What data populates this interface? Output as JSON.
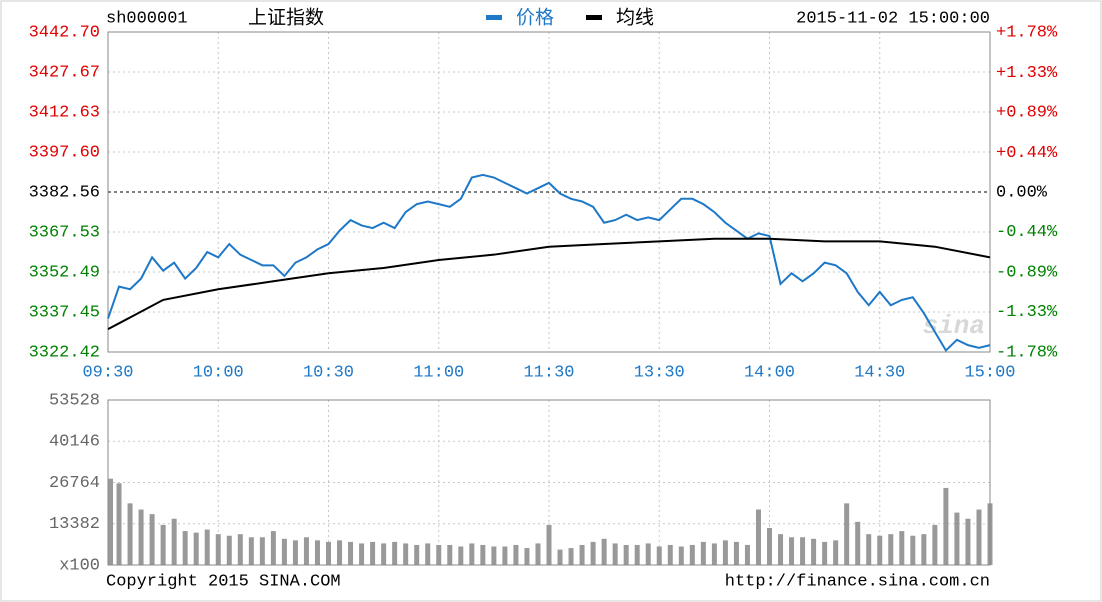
{
  "chart_data": [
    {
      "type": "line",
      "symbol": "sh000001",
      "title": "上证指数",
      "timestamp": "2015-11-02 15:00:00",
      "watermark": "sina",
      "up_color": "#e00000",
      "down_color": "#008000",
      "x": [
        0,
        3,
        6,
        9,
        12,
        15,
        18,
        21,
        24,
        27,
        30,
        33,
        36,
        39,
        42,
        45,
        48,
        51,
        54,
        57,
        60,
        63,
        66,
        69,
        72,
        75,
        78,
        81,
        84,
        87,
        90,
        93,
        96,
        99,
        102,
        105,
        108,
        111,
        114,
        117,
        120,
        123,
        126,
        129,
        132,
        135,
        138,
        141,
        144,
        147,
        150,
        153,
        156,
        159,
        162,
        165,
        168,
        171,
        174,
        177,
        180,
        183,
        186,
        189,
        192,
        195,
        198,
        201,
        204,
        207,
        210,
        213,
        216,
        219,
        222,
        225,
        228,
        231,
        234,
        237,
        240
      ],
      "xlim": [
        0,
        240
      ],
      "xticks": [
        {
          "value": 0,
          "label": "09:30"
        },
        {
          "value": 30,
          "label": "10:00"
        },
        {
          "value": 60,
          "label": "10:30"
        },
        {
          "value": 90,
          "label": "11:00"
        },
        {
          "value": 120,
          "label": "11:30"
        },
        {
          "value": 150,
          "label": "13:30"
        },
        {
          "value": 180,
          "label": "14:00"
        },
        {
          "value": 210,
          "label": "14:30"
        },
        {
          "value": 240,
          "label": "15:00"
        }
      ],
      "ylim": [
        3322.42,
        3442.7
      ],
      "yticks": [
        {
          "value": 3442.7,
          "label": "3442.70"
        },
        3427.67,
        3412.63,
        {
          "value": 3397.6,
          "label": "3397.60"
        },
        3382.56,
        3367.53,
        3352.49,
        3337.45,
        3322.42
      ],
      "y2lim": [
        -1.78,
        1.78
      ],
      "y2ticks": [
        {
          "value": 1.78,
          "label": "+1.78%"
        },
        {
          "value": 1.33,
          "label": "+1.33%"
        },
        {
          "value": 0.89,
          "label": "+0.89%"
        },
        {
          "value": 0.44,
          "label": "+0.44%"
        },
        {
          "value": 0,
          "label": "0.00%"
        },
        {
          "value": -0.44,
          "label": "-0.44%"
        },
        {
          "value": -0.89,
          "label": "-0.89%"
        },
        {
          "value": -1.33,
          "label": "-1.33%"
        },
        {
          "value": -1.78,
          "label": "-1.78%"
        }
      ],
      "grid": true,
      "series": [
        {
          "name": "价格",
          "color": "#1e78c8",
          "values": [
            3335,
            3347,
            3346,
            3350,
            3358,
            3353,
            3356,
            3350,
            3354,
            3360,
            3358,
            3363,
            3359,
            3357,
            3355,
            3355,
            3351,
            3356,
            3358,
            3361,
            3363,
            3368,
            3372,
            3370,
            3369,
            3371,
            3369,
            3375,
            3378,
            3379,
            3378,
            3377,
            3380,
            3388,
            3389,
            3388,
            3386,
            3384,
            3382,
            3384,
            3386,
            3382,
            3380,
            3379,
            3377,
            3371,
            3372,
            3374,
            3372,
            3373,
            3372,
            3376,
            3380,
            3380,
            3378,
            3375,
            3371,
            3368,
            3365,
            3367,
            3366,
            3348,
            3352,
            3349,
            3352,
            3356,
            3355,
            3352,
            3345,
            3340,
            3345,
            3340,
            3342,
            3343,
            3337,
            3330,
            3323,
            3327,
            3325,
            3324,
            3325
          ]
        },
        {
          "name": "均线",
          "color": "#000000",
          "x": [
            0,
            15,
            30,
            45,
            60,
            75,
            90,
            105,
            120,
            135,
            150,
            165,
            180,
            195,
            210,
            225,
            240
          ],
          "values": [
            3331,
            3342,
            3346,
            3349,
            3352,
            3354,
            3357,
            3359,
            3362,
            3363,
            3364,
            3365,
            3365,
            3364,
            3364,
            3362,
            3358
          ]
        }
      ]
    },
    {
      "type": "bar",
      "copyright": "Copyright 2015 SINA.COM",
      "source": "http://finance.sina.com.cn",
      "color": "#999999",
      "ylim": [
        0,
        53528
      ],
      "yticks": [
        53528,
        40146,
        26764,
        13382,
        {
          "value": 0,
          "label": "x100"
        }
      ],
      "values": [
        28000,
        26500,
        20000,
        18000,
        16500,
        13000,
        15000,
        11000,
        10500,
        11500,
        10000,
        9500,
        10000,
        9000,
        9000,
        11000,
        8500,
        8000,
        9000,
        8000,
        7500,
        8000,
        7500,
        7000,
        7500,
        7000,
        7500,
        7000,
        6500,
        7000,
        6500,
        6500,
        6000,
        7000,
        6500,
        6000,
        6000,
        6500,
        5500,
        7000,
        13000,
        5000,
        5500,
        6500,
        7500,
        8500,
        7000,
        6500,
        6500,
        7000,
        6000,
        6500,
        6000,
        6500,
        7500,
        7000,
        8000,
        7500,
        6500,
        18000,
        12000,
        10000,
        9000,
        9000,
        8500,
        7500,
        8000,
        20000,
        14000,
        10000,
        9500,
        10000,
        11000,
        9500,
        10000,
        13000,
        25000,
        17000,
        15000,
        18000,
        20000
      ]
    }
  ]
}
